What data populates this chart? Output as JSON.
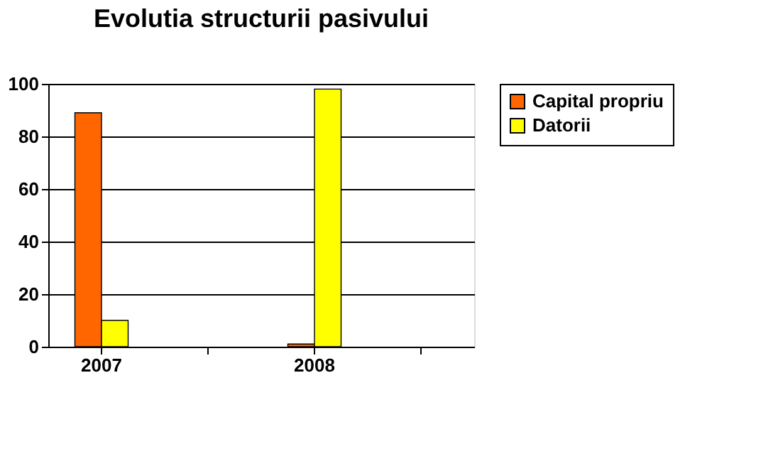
{
  "chart_data": {
    "type": "bar",
    "title": "Evolutia structurii pasivului",
    "categories": [
      "2007",
      null,
      "2008",
      null
    ],
    "series": [
      {
        "name": "Capital propriu",
        "color": "#ff6600",
        "values": [
          89,
          null,
          1,
          null
        ]
      },
      {
        "name": "Datorii",
        "color": "#ffff00",
        "values": [
          10,
          null,
          98,
          null
        ]
      }
    ],
    "ylim": [
      0,
      100
    ],
    "yticks": [
      0,
      20,
      40,
      60,
      80,
      100
    ],
    "grid": "y",
    "legend": "right"
  }
}
